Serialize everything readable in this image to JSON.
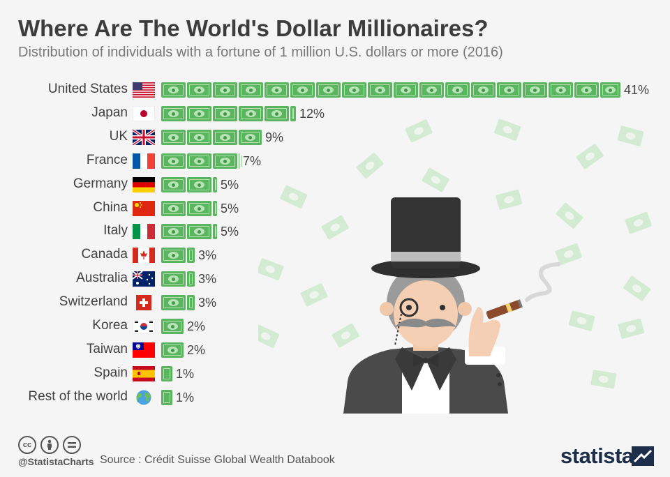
{
  "header": {
    "title": "Where Are The World's Dollar Millionaires?",
    "subtitle": "Distribution of individuals with a fortune of 1 million U.S. dollars or more (2016)"
  },
  "chart_data": {
    "type": "bar",
    "orientation": "horizontal",
    "title": "Where Are The World's Dollar Millionaires?",
    "subtitle": "Distribution of individuals with a fortune of 1 million U.S. dollars or more (2016)",
    "categories": [
      "United States",
      "Japan",
      "UK",
      "France",
      "Germany",
      "China",
      "Italy",
      "Canada",
      "Australia",
      "Switzerland",
      "Korea",
      "Taiwan",
      "Spain",
      "Rest of the world"
    ],
    "values": [
      41,
      12,
      9,
      7,
      5,
      5,
      5,
      3,
      3,
      3,
      2,
      2,
      1,
      1
    ],
    "value_labels": [
      "41%",
      "12%",
      "9%",
      "7%",
      "5%",
      "5%",
      "5%",
      "3%",
      "3%",
      "3%",
      "2%",
      "2%",
      "1%",
      "1%"
    ],
    "unit": "%",
    "xlim": [
      0,
      41
    ],
    "grid": false,
    "legend": "none",
    "colors": {
      "bar": "#5ab65e",
      "bar_light": "#b9e2b9",
      "bar_dark": "#3f9b43"
    }
  },
  "flags": [
    "us-flag-icon",
    "japan-flag-icon",
    "uk-flag-icon",
    "france-flag-icon",
    "germany-flag-icon",
    "china-flag-icon",
    "italy-flag-icon",
    "canada-flag-icon",
    "australia-flag-icon",
    "switzerland-flag-icon",
    "korea-flag-icon",
    "taiwan-flag-icon",
    "spain-flag-icon",
    "globe-icon"
  ],
  "illustration": {
    "icon": "millionaire-with-top-hat-and-cigar-illustration"
  },
  "footer": {
    "license_icons": [
      "cc-icon",
      "attribution-icon",
      "no-derivatives-icon"
    ],
    "cc_text": "cc",
    "handle": "@StatistaCharts",
    "source": "Source : Crédit Suisse Global Wealth Databook",
    "brand": "statista"
  }
}
